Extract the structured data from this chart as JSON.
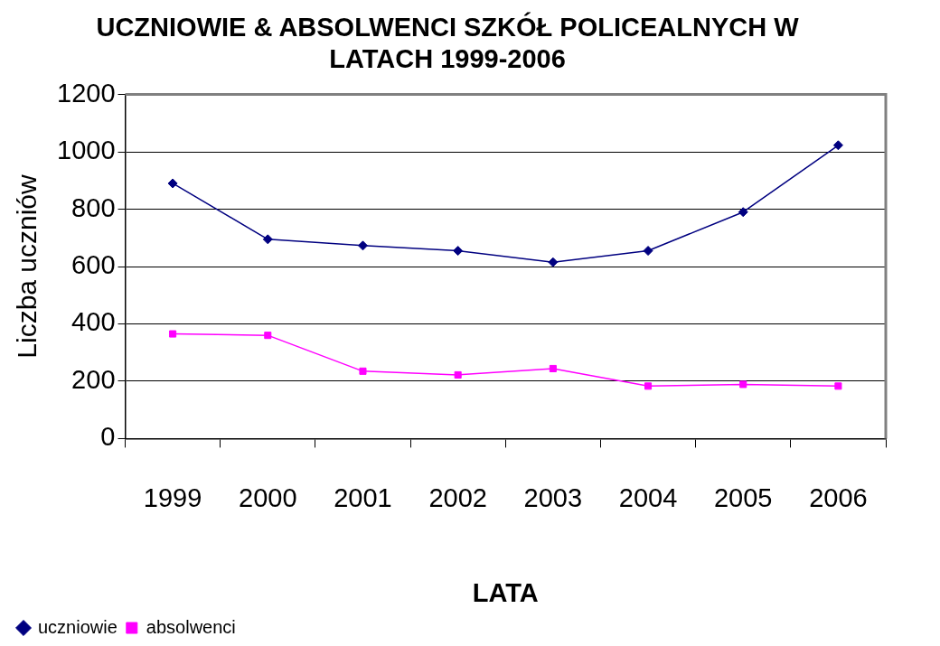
{
  "chart_data": {
    "type": "line",
    "title": "UCZNIOWIE & ABSOLWENCI SZKÓŁ POLICEALNYCH W LATACH 1999-2006",
    "xlabel": "LATA",
    "ylabel": "Liczba uczniów",
    "categories": [
      "1999",
      "2000",
      "2001",
      "2002",
      "2003",
      "2004",
      "2005",
      "2006"
    ],
    "series": [
      {
        "name": "uczniowie",
        "color": "#000080",
        "marker": "diamond",
        "values": [
          890,
          695,
          673,
          655,
          615,
          655,
          790,
          1023
        ]
      },
      {
        "name": "absolwenci",
        "color": "#ff00ff",
        "marker": "square",
        "values": [
          365,
          360,
          235,
          222,
          244,
          183,
          189,
          183
        ]
      }
    ],
    "ylim": [
      0,
      1200
    ],
    "yticks": [
      0,
      200,
      400,
      600,
      800,
      1000,
      1200
    ],
    "grid": "y",
    "legend": "bottom left"
  }
}
